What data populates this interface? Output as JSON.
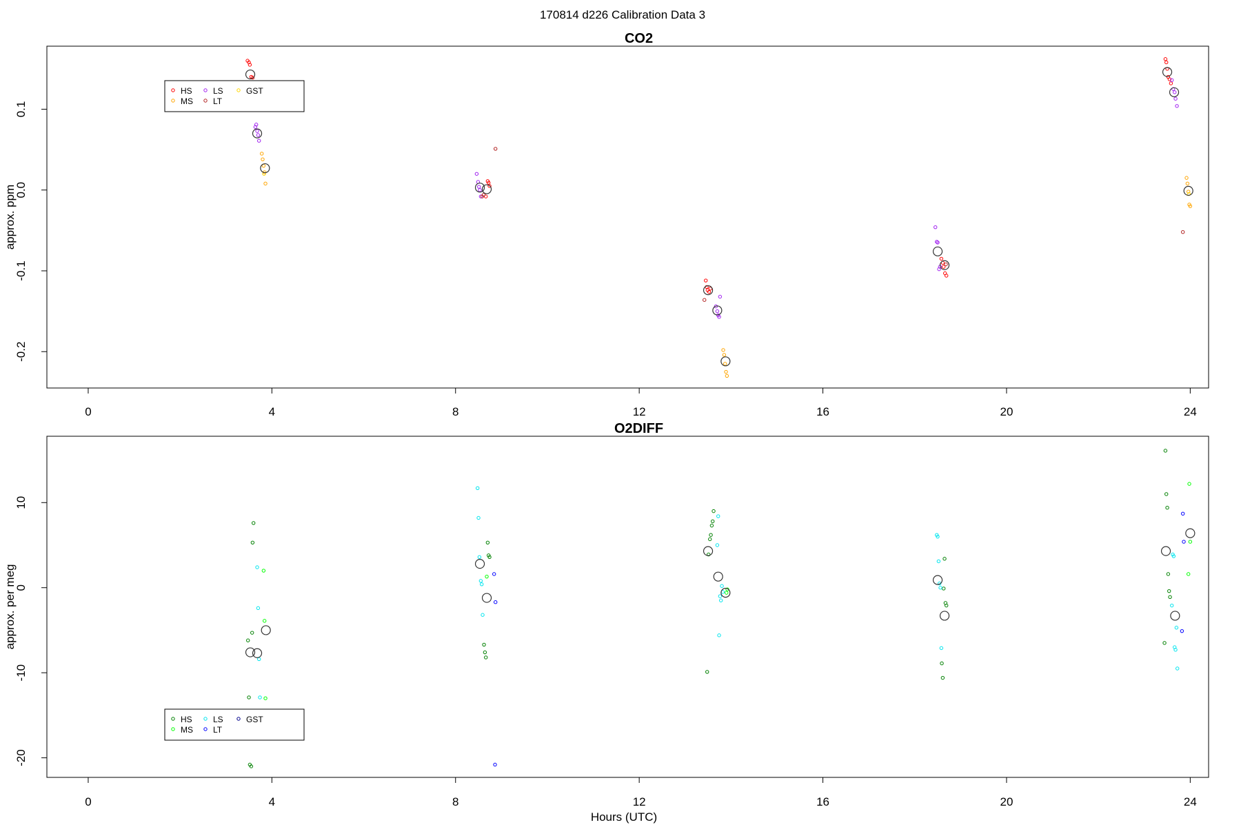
{
  "figure": {
    "title": "170814   d226   Calibration Data 3"
  },
  "chart_data": [
    {
      "type": "scatter",
      "title": "CO2",
      "xlabel": "",
      "ylabel": "approx. ppm",
      "xlim": [
        -0.9,
        24.4
      ],
      "ylim": [
        -0.245,
        0.178
      ],
      "x_ticks": [
        0,
        4,
        8,
        12,
        16,
        20,
        24
      ],
      "x_tick_labels": [
        "0",
        "4",
        "8",
        "12",
        "16",
        "20",
        "24"
      ],
      "y_ticks": [
        -0.2,
        -0.1,
        0.0,
        0.1
      ],
      "y_tick_labels": [
        "-0.2",
        "-0.1",
        "0.0",
        "0.1"
      ],
      "grid": false,
      "legend_position": "top-left",
      "legend": [
        {
          "name": "HS",
          "color": "#ff0000"
        },
        {
          "name": "MS",
          "color": "#ffa500"
        },
        {
          "name": "LS",
          "color": "#a020f0"
        },
        {
          "name": "LT",
          "color": "#b22222"
        },
        {
          "name": "GST",
          "color": "#ffd700"
        }
      ],
      "series": [
        {
          "name": "HS",
          "color": "#ff0000",
          "points": [
            [
              3.47,
              0.16
            ],
            [
              3.5,
              0.158
            ],
            [
              3.52,
              0.155
            ],
            [
              3.55,
              0.14
            ],
            [
              3.58,
              0.139
            ],
            [
              8.7,
              0.011
            ],
            [
              8.72,
              0.009
            ],
            [
              8.74,
              0.005
            ],
            [
              8.66,
              -0.008
            ],
            [
              13.45,
              -0.112
            ],
            [
              13.47,
              -0.12
            ],
            [
              13.49,
              -0.124
            ],
            [
              13.52,
              -0.126
            ],
            [
              13.55,
              -0.122
            ],
            [
              18.58,
              -0.085
            ],
            [
              18.61,
              -0.09
            ],
            [
              18.63,
              -0.095
            ],
            [
              18.66,
              -0.103
            ],
            [
              18.69,
              -0.106
            ],
            [
              23.46,
              0.162
            ],
            [
              23.48,
              0.158
            ],
            [
              23.5,
              0.15
            ],
            [
              23.52,
              0.14
            ],
            [
              23.55,
              0.137
            ],
            [
              23.58,
              0.132
            ]
          ]
        },
        {
          "name": "MS",
          "color": "#ffa500",
          "points": [
            [
              3.78,
              0.045
            ],
            [
              3.8,
              0.038
            ],
            [
              3.82,
              0.03
            ],
            [
              3.84,
              0.022
            ],
            [
              3.86,
              0.008
            ],
            [
              13.83,
              -0.198
            ],
            [
              13.85,
              -0.204
            ],
            [
              13.87,
              -0.215
            ],
            [
              13.89,
              -0.225
            ],
            [
              13.91,
              -0.23
            ],
            [
              23.92,
              0.015
            ],
            [
              23.94,
              0.008
            ],
            [
              23.96,
              -0.002
            ],
            [
              23.98,
              -0.018
            ],
            [
              24.0,
              -0.02
            ]
          ]
        },
        {
          "name": "LS",
          "color": "#a020f0",
          "points": [
            [
              3.64,
              0.078
            ],
            [
              3.66,
              0.081
            ],
            [
              3.68,
              0.073
            ],
            [
              3.7,
              0.068
            ],
            [
              3.72,
              0.061
            ],
            [
              8.46,
              0.02
            ],
            [
              8.49,
              0.01
            ],
            [
              8.51,
              0.004
            ],
            [
              8.53,
              0.0
            ],
            [
              8.55,
              -0.008
            ],
            [
              13.67,
              -0.144
            ],
            [
              13.7,
              -0.15
            ],
            [
              13.72,
              -0.155
            ],
            [
              13.74,
              -0.157
            ],
            [
              13.76,
              -0.132
            ],
            [
              18.45,
              -0.046
            ],
            [
              18.48,
              -0.064
            ],
            [
              18.5,
              -0.065
            ],
            [
              18.53,
              -0.098
            ],
            [
              18.55,
              -0.095
            ],
            [
              23.6,
              0.136
            ],
            [
              23.63,
              0.125
            ],
            [
              23.66,
              0.121
            ],
            [
              23.68,
              0.113
            ],
            [
              23.71,
              0.104
            ]
          ]
        },
        {
          "name": "LT",
          "color": "#b22222",
          "points": [
            [
              8.58,
              -0.008
            ],
            [
              8.61,
              -0.006
            ],
            [
              8.87,
              0.051
            ],
            [
              13.42,
              -0.136
            ],
            [
              18.68,
              -0.092
            ],
            [
              23.84,
              -0.052
            ]
          ]
        },
        {
          "name": "GST",
          "color": "#ffd700",
          "points": [
            [
              3.83,
              0.02
            ],
            [
              23.97,
              -0.005
            ]
          ]
        }
      ],
      "means": [
        [
          3.53,
          0.143
        ],
        [
          3.68,
          0.07
        ],
        [
          3.85,
          0.027
        ],
        [
          8.53,
          0.003
        ],
        [
          8.68,
          0.001
        ],
        [
          13.5,
          -0.124
        ],
        [
          13.7,
          -0.149
        ],
        [
          13.88,
          -0.212
        ],
        [
          18.5,
          -0.076
        ],
        [
          18.65,
          -0.093
        ],
        [
          23.5,
          0.146
        ],
        [
          23.65,
          0.121
        ],
        [
          23.96,
          -0.001
        ]
      ]
    },
    {
      "type": "scatter",
      "title": "O2DIFF",
      "xlabel": "Hours (UTC)",
      "ylabel": "approx. per meg",
      "xlim": [
        -0.9,
        24.4
      ],
      "ylim": [
        -22.3,
        17.8
      ],
      "x_ticks": [
        0,
        4,
        8,
        12,
        16,
        20,
        24
      ],
      "x_tick_labels": [
        "0",
        "4",
        "8",
        "12",
        "16",
        "20",
        "24"
      ],
      "y_ticks": [
        -20,
        -10,
        0,
        10
      ],
      "y_tick_labels": [
        "-20",
        "-10",
        "0",
        "10"
      ],
      "grid": false,
      "legend_position": "bottom-left",
      "legend": [
        {
          "name": "HS",
          "color": "#008000"
        },
        {
          "name": "MS",
          "color": "#00ff00"
        },
        {
          "name": "LS",
          "color": "#00e5ee"
        },
        {
          "name": "LT",
          "color": "#0000ff"
        },
        {
          "name": "GST",
          "color": "#00008b"
        }
      ],
      "series": [
        {
          "name": "HS",
          "color": "#008000",
          "points": [
            [
              3.48,
              -6.2
            ],
            [
              3.5,
              -12.9
            ],
            [
              3.52,
              -20.8
            ],
            [
              3.55,
              -21.0
            ],
            [
              3.57,
              -5.3
            ],
            [
              3.58,
              5.3
            ],
            [
              3.6,
              7.6
            ],
            [
              8.62,
              -6.7
            ],
            [
              8.64,
              -7.6
            ],
            [
              8.66,
              -8.2
            ],
            [
              8.7,
              5.3
            ],
            [
              8.72,
              3.8
            ],
            [
              8.74,
              3.6
            ],
            [
              13.48,
              -9.9
            ],
            [
              13.51,
              3.9
            ],
            [
              13.54,
              5.7
            ],
            [
              13.56,
              6.2
            ],
            [
              13.58,
              7.3
            ],
            [
              13.6,
              7.8
            ],
            [
              13.62,
              9.0
            ],
            [
              18.59,
              -8.9
            ],
            [
              18.61,
              -10.6
            ],
            [
              18.63,
              -0.1
            ],
            [
              18.65,
              3.4
            ],
            [
              18.67,
              -1.8
            ],
            [
              18.69,
              -2.1
            ],
            [
              23.46,
              16.1
            ],
            [
              23.48,
              11.0
            ],
            [
              23.5,
              9.4
            ],
            [
              23.52,
              1.6
            ],
            [
              23.54,
              -0.4
            ],
            [
              23.56,
              -1.1
            ],
            [
              23.44,
              -6.5
            ]
          ]
        },
        {
          "name": "MS",
          "color": "#00ff00",
          "points": [
            [
              3.82,
              2.0
            ],
            [
              3.84,
              -3.9
            ],
            [
              3.86,
              -13.0
            ],
            [
              8.68,
              1.3
            ],
            [
              13.9,
              -0.6
            ],
            [
              13.92,
              -0.2
            ],
            [
              23.98,
              12.2
            ],
            [
              24.0,
              5.4
            ],
            [
              23.96,
              1.6
            ]
          ]
        },
        {
          "name": "LS",
          "color": "#00e5ee",
          "points": [
            [
              3.68,
              2.4
            ],
            [
              3.7,
              -2.4
            ],
            [
              3.72,
              -8.4
            ],
            [
              3.74,
              -12.9
            ],
            [
              8.48,
              11.7
            ],
            [
              8.5,
              8.2
            ],
            [
              8.52,
              3.6
            ],
            [
              8.55,
              0.8
            ],
            [
              8.57,
              0.4
            ],
            [
              8.59,
              -3.2
            ],
            [
              13.7,
              5.0
            ],
            [
              13.72,
              8.4
            ],
            [
              13.74,
              -5.6
            ],
            [
              13.76,
              -1.0
            ],
            [
              13.78,
              -1.5
            ],
            [
              13.8,
              0.2
            ],
            [
              13.82,
              -0.5
            ],
            [
              18.48,
              6.2
            ],
            [
              18.5,
              6.0
            ],
            [
              18.52,
              3.1
            ],
            [
              18.54,
              0.5
            ],
            [
              18.56,
              0.0
            ],
            [
              18.58,
              -7.1
            ],
            [
              23.62,
              3.9
            ],
            [
              23.64,
              3.7
            ],
            [
              23.66,
              -7.0
            ],
            [
              23.68,
              -7.3
            ],
            [
              23.7,
              -4.7
            ],
            [
              23.72,
              -9.5
            ],
            [
              23.6,
              -2.1
            ]
          ]
        },
        {
          "name": "LT",
          "color": "#0000ff",
          "points": [
            [
              8.84,
              1.6
            ],
            [
              8.87,
              -1.7
            ],
            [
              8.86,
              -20.8
            ],
            [
              23.84,
              8.7
            ],
            [
              23.86,
              5.4
            ],
            [
              23.82,
              -5.1
            ]
          ]
        }
      ],
      "means": [
        [
          3.53,
          -7.6
        ],
        [
          3.68,
          -7.7
        ],
        [
          3.87,
          -5.0
        ],
        [
          8.53,
          2.8
        ],
        [
          8.68,
          -1.2
        ],
        [
          13.5,
          4.3
        ],
        [
          13.72,
          1.3
        ],
        [
          13.88,
          -0.6
        ],
        [
          18.5,
          0.9
        ],
        [
          18.65,
          -3.3
        ],
        [
          23.47,
          4.3
        ],
        [
          23.67,
          -3.3
        ],
        [
          24.0,
          6.4
        ]
      ]
    }
  ]
}
